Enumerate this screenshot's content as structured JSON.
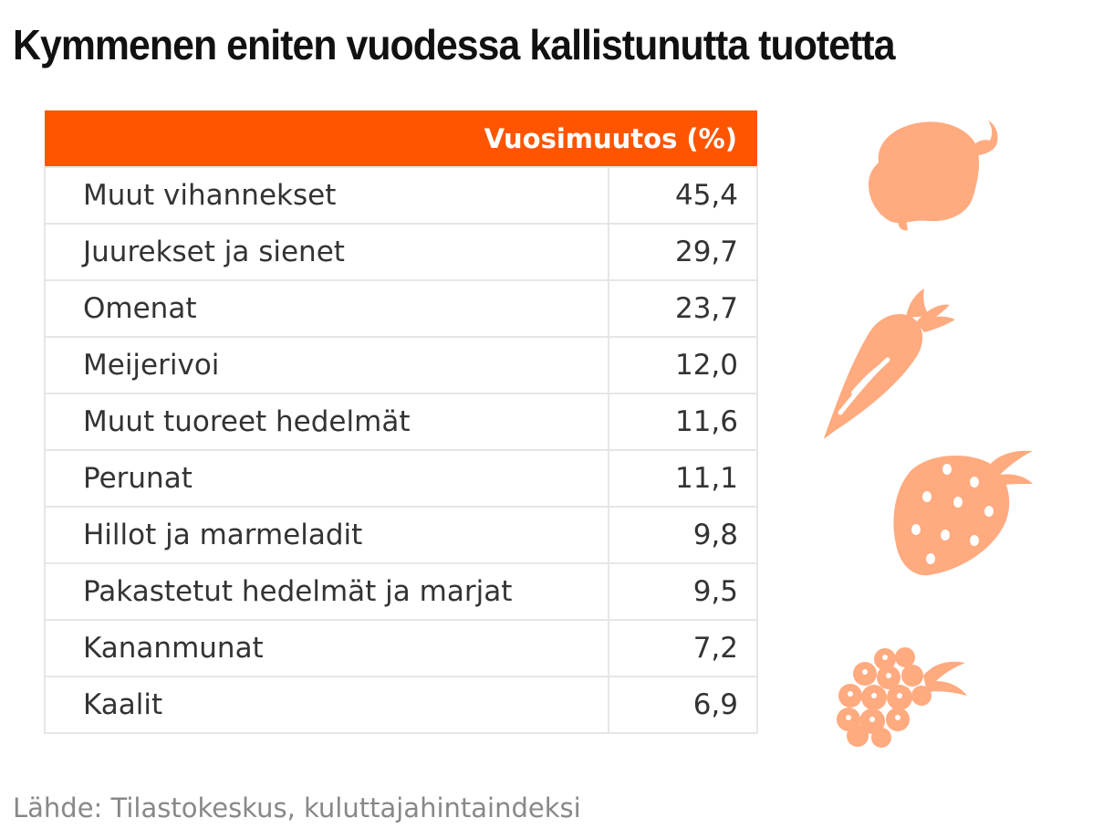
{
  "title": "Kymmenen eniten vuodessa kallistunutta tuotetta",
  "source": "Lähde: Tilastokeskus, kuluttajahintaindeksi",
  "colors": {
    "header": "#ff5500",
    "icon": "#ffaa7f",
    "grid": "#e6e6e6"
  },
  "icons": [
    "pepper-icon",
    "carrot-icon",
    "strawberry-icon",
    "raspberry-icon"
  ],
  "chart_data": {
    "type": "table",
    "columns": [
      "",
      "Vuosimuutos (%)"
    ],
    "rows": [
      {
        "label": "Muut vihannekset",
        "value": "45,4"
      },
      {
        "label": "Juurekset ja sienet",
        "value": "29,7"
      },
      {
        "label": "Omenat",
        "value": "23,7"
      },
      {
        "label": "Meijerivoi",
        "value": "12,0"
      },
      {
        "label": "Muut tuoreet hedelmät",
        "value": "11,6"
      },
      {
        "label": "Perunat",
        "value": "11,1"
      },
      {
        "label": "Hillot ja marmeladit",
        "value": "9,8"
      },
      {
        "label": "Pakastetut hedelmät ja marjat",
        "value": "9,5"
      },
      {
        "label": "Kananmunat",
        "value": "7,2"
      },
      {
        "label": "Kaalit",
        "value": "6,9"
      }
    ]
  }
}
